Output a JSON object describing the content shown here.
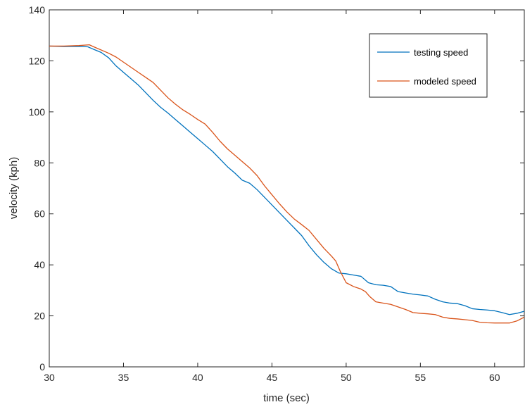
{
  "chart_data": {
    "type": "line",
    "title": "",
    "xlabel": "time (sec)",
    "ylabel": "velocity (kph)",
    "xlim": [
      30,
      62
    ],
    "ylim": [
      0,
      140
    ],
    "xticks": [
      30,
      35,
      40,
      45,
      50,
      55,
      60
    ],
    "yticks": [
      0,
      20,
      40,
      60,
      80,
      100,
      120,
      140
    ],
    "grid": false,
    "legend_position": "top-right",
    "series": [
      {
        "name": "testing speed",
        "color": "#0072BD",
        "points": [
          [
            30,
            125.8
          ],
          [
            31,
            125.6
          ],
          [
            32,
            125.7
          ],
          [
            32.6,
            125.5
          ],
          [
            33,
            124.5
          ],
          [
            33.5,
            123.3
          ],
          [
            34,
            121.2
          ],
          [
            34.5,
            118.0
          ],
          [
            35,
            115.5
          ],
          [
            35.5,
            113.0
          ],
          [
            36,
            110.5
          ],
          [
            36.5,
            107.5
          ],
          [
            37,
            104.5
          ],
          [
            37.5,
            101.8
          ],
          [
            38,
            99.5
          ],
          [
            38.5,
            97.0
          ],
          [
            39,
            94.5
          ],
          [
            39.5,
            92.0
          ],
          [
            40,
            89.5
          ],
          [
            40.5,
            87.0
          ],
          [
            41,
            84.5
          ],
          [
            41.5,
            81.5
          ],
          [
            42,
            78.5
          ],
          [
            42.5,
            76.0
          ],
          [
            43,
            73.2
          ],
          [
            43.5,
            72.0
          ],
          [
            44,
            69.5
          ],
          [
            44.5,
            66.5
          ],
          [
            45,
            63.5
          ],
          [
            45.5,
            60.5
          ],
          [
            46,
            57.5
          ],
          [
            46.5,
            54.5
          ],
          [
            47,
            51.5
          ],
          [
            47.5,
            47.5
          ],
          [
            48,
            44.0
          ],
          [
            48.5,
            41.0
          ],
          [
            49,
            38.5
          ],
          [
            49.5,
            36.8
          ],
          [
            50,
            36.5
          ],
          [
            50.5,
            36.0
          ],
          [
            51,
            35.5
          ],
          [
            51.5,
            33.0
          ],
          [
            52,
            32.2
          ],
          [
            52.5,
            32.0
          ],
          [
            53,
            31.5
          ],
          [
            53.5,
            29.5
          ],
          [
            54,
            29.0
          ],
          [
            54.5,
            28.5
          ],
          [
            55,
            28.2
          ],
          [
            55.5,
            27.8
          ],
          [
            56,
            26.5
          ],
          [
            56.5,
            25.5
          ],
          [
            57,
            25.0
          ],
          [
            57.5,
            24.8
          ],
          [
            58,
            24.0
          ],
          [
            58.5,
            22.8
          ],
          [
            59,
            22.5
          ],
          [
            59.5,
            22.3
          ],
          [
            60,
            22.0
          ],
          [
            60.5,
            21.3
          ],
          [
            61,
            20.5
          ],
          [
            61.5,
            21.0
          ],
          [
            62,
            21.8
          ]
        ]
      },
      {
        "name": "modeled speed",
        "color": "#D95319",
        "points": [
          [
            30,
            125.8
          ],
          [
            31,
            125.8
          ],
          [
            32,
            126.0
          ],
          [
            32.7,
            126.3
          ],
          [
            33,
            125.5
          ],
          [
            34,
            123.0
          ],
          [
            34.5,
            121.5
          ],
          [
            35,
            119.5
          ],
          [
            35.5,
            117.5
          ],
          [
            36,
            115.5
          ],
          [
            36.5,
            113.5
          ],
          [
            37,
            111.5
          ],
          [
            37.5,
            108.5
          ],
          [
            38,
            105.5
          ],
          [
            38.5,
            103.0
          ],
          [
            39,
            100.8
          ],
          [
            39.5,
            99.0
          ],
          [
            40,
            97.0
          ],
          [
            40.5,
            95.2
          ],
          [
            41,
            92.0
          ],
          [
            41.5,
            88.5
          ],
          [
            42,
            85.5
          ],
          [
            42.5,
            83.0
          ],
          [
            43,
            80.5
          ],
          [
            43.5,
            78.0
          ],
          [
            44,
            75.0
          ],
          [
            44.5,
            71.0
          ],
          [
            45,
            67.5
          ],
          [
            45.5,
            64.0
          ],
          [
            46,
            60.8
          ],
          [
            46.5,
            58.0
          ],
          [
            47,
            55.8
          ],
          [
            47.5,
            53.5
          ],
          [
            48,
            50.0
          ],
          [
            48.5,
            46.5
          ],
          [
            49,
            43.5
          ],
          [
            49.3,
            41.5
          ],
          [
            49.6,
            37.5
          ],
          [
            50,
            33.0
          ],
          [
            50.5,
            31.5
          ],
          [
            51,
            30.5
          ],
          [
            51.3,
            29.5
          ],
          [
            51.6,
            27.5
          ],
          [
            52,
            25.5
          ],
          [
            52.5,
            25.0
          ],
          [
            53,
            24.5
          ],
          [
            53.5,
            23.5
          ],
          [
            54,
            22.5
          ],
          [
            54.5,
            21.3
          ],
          [
            55,
            21.0
          ],
          [
            55.5,
            20.8
          ],
          [
            56,
            20.5
          ],
          [
            56.5,
            19.5
          ],
          [
            57,
            19.0
          ],
          [
            57.5,
            18.8
          ],
          [
            58,
            18.5
          ],
          [
            58.5,
            18.2
          ],
          [
            59,
            17.5
          ],
          [
            59.5,
            17.3
          ],
          [
            60,
            17.2
          ],
          [
            60.5,
            17.2
          ],
          [
            61,
            17.2
          ],
          [
            61.5,
            18.0
          ],
          [
            62,
            19.5
          ]
        ]
      }
    ]
  }
}
